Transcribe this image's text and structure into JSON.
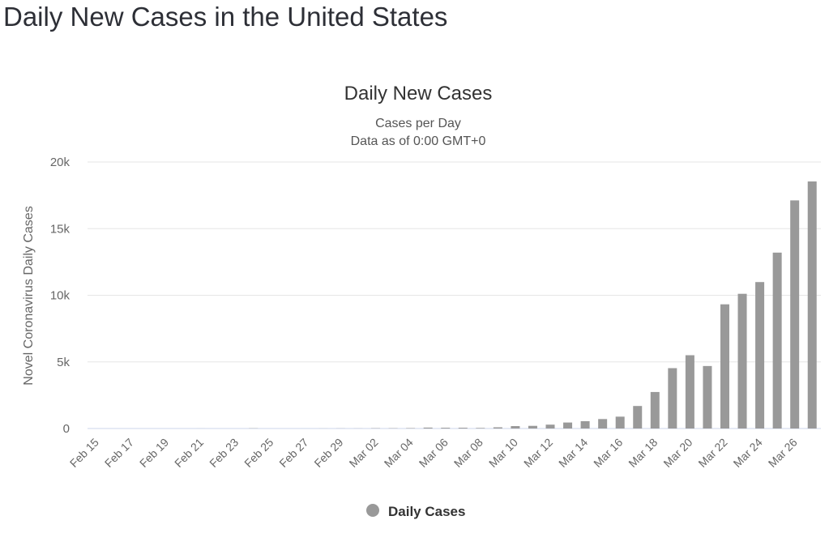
{
  "page_title": "Daily New Cases in the United States",
  "chart_data": {
    "type": "bar",
    "title": "Daily New Cases",
    "subtitle": [
      "Cases per Day",
      "Data as of 0:00 GMT+0"
    ],
    "xlabel": "",
    "ylabel": "Novel Coronavirus Daily Cases",
    "ylim": [
      0,
      20000
    ],
    "yticks": [
      0,
      5000,
      10000,
      15000,
      20000
    ],
    "ytick_labels": [
      "0",
      "5k",
      "10k",
      "15k",
      "20k"
    ],
    "grid": true,
    "legend": {
      "position": "bottom-center",
      "entries": [
        "Daily Cases"
      ]
    },
    "color": "#999999",
    "categories": [
      "Feb 15",
      "Feb 16",
      "Feb 17",
      "Feb 18",
      "Feb 19",
      "Feb 20",
      "Feb 21",
      "Feb 22",
      "Feb 23",
      "Feb 24",
      "Feb 25",
      "Feb 26",
      "Feb 27",
      "Feb 28",
      "Feb 29",
      "Mar 01",
      "Mar 02",
      "Mar 03",
      "Mar 04",
      "Mar 05",
      "Mar 06",
      "Mar 07",
      "Mar 08",
      "Mar 09",
      "Mar 10",
      "Mar 11",
      "Mar 12",
      "Mar 13",
      "Mar 14",
      "Mar 15",
      "Mar 16",
      "Mar 17",
      "Mar 18",
      "Mar 19",
      "Mar 20",
      "Mar 21",
      "Mar 22",
      "Mar 23",
      "Mar 24",
      "Mar 25",
      "Mar 26",
      "Mar 27"
    ],
    "xtick_labels": [
      "Feb 15",
      "Feb 17",
      "Feb 19",
      "Feb 21",
      "Feb 23",
      "Feb 25",
      "Feb 27",
      "Feb 29",
      "Mar 02",
      "Mar 04",
      "Mar 06",
      "Mar 08",
      "Mar 10",
      "Mar 12",
      "Mar 14",
      "Mar 16",
      "Mar 18",
      "Mar 20",
      "Mar 22",
      "Mar 24",
      "Mar 26"
    ],
    "series": [
      {
        "name": "Daily Cases",
        "values": [
          0,
          0,
          0,
          0,
          0,
          0,
          2,
          0,
          0,
          17,
          0,
          0,
          1,
          5,
          8,
          7,
          23,
          21,
          31,
          69,
          58,
          59,
          42,
          90,
          180,
          200,
          290,
          450,
          550,
          710,
          890,
          1690,
          2740,
          4530,
          5500,
          4690,
          9320,
          10110,
          10990,
          13200,
          17120,
          18540
        ]
      }
    ]
  }
}
